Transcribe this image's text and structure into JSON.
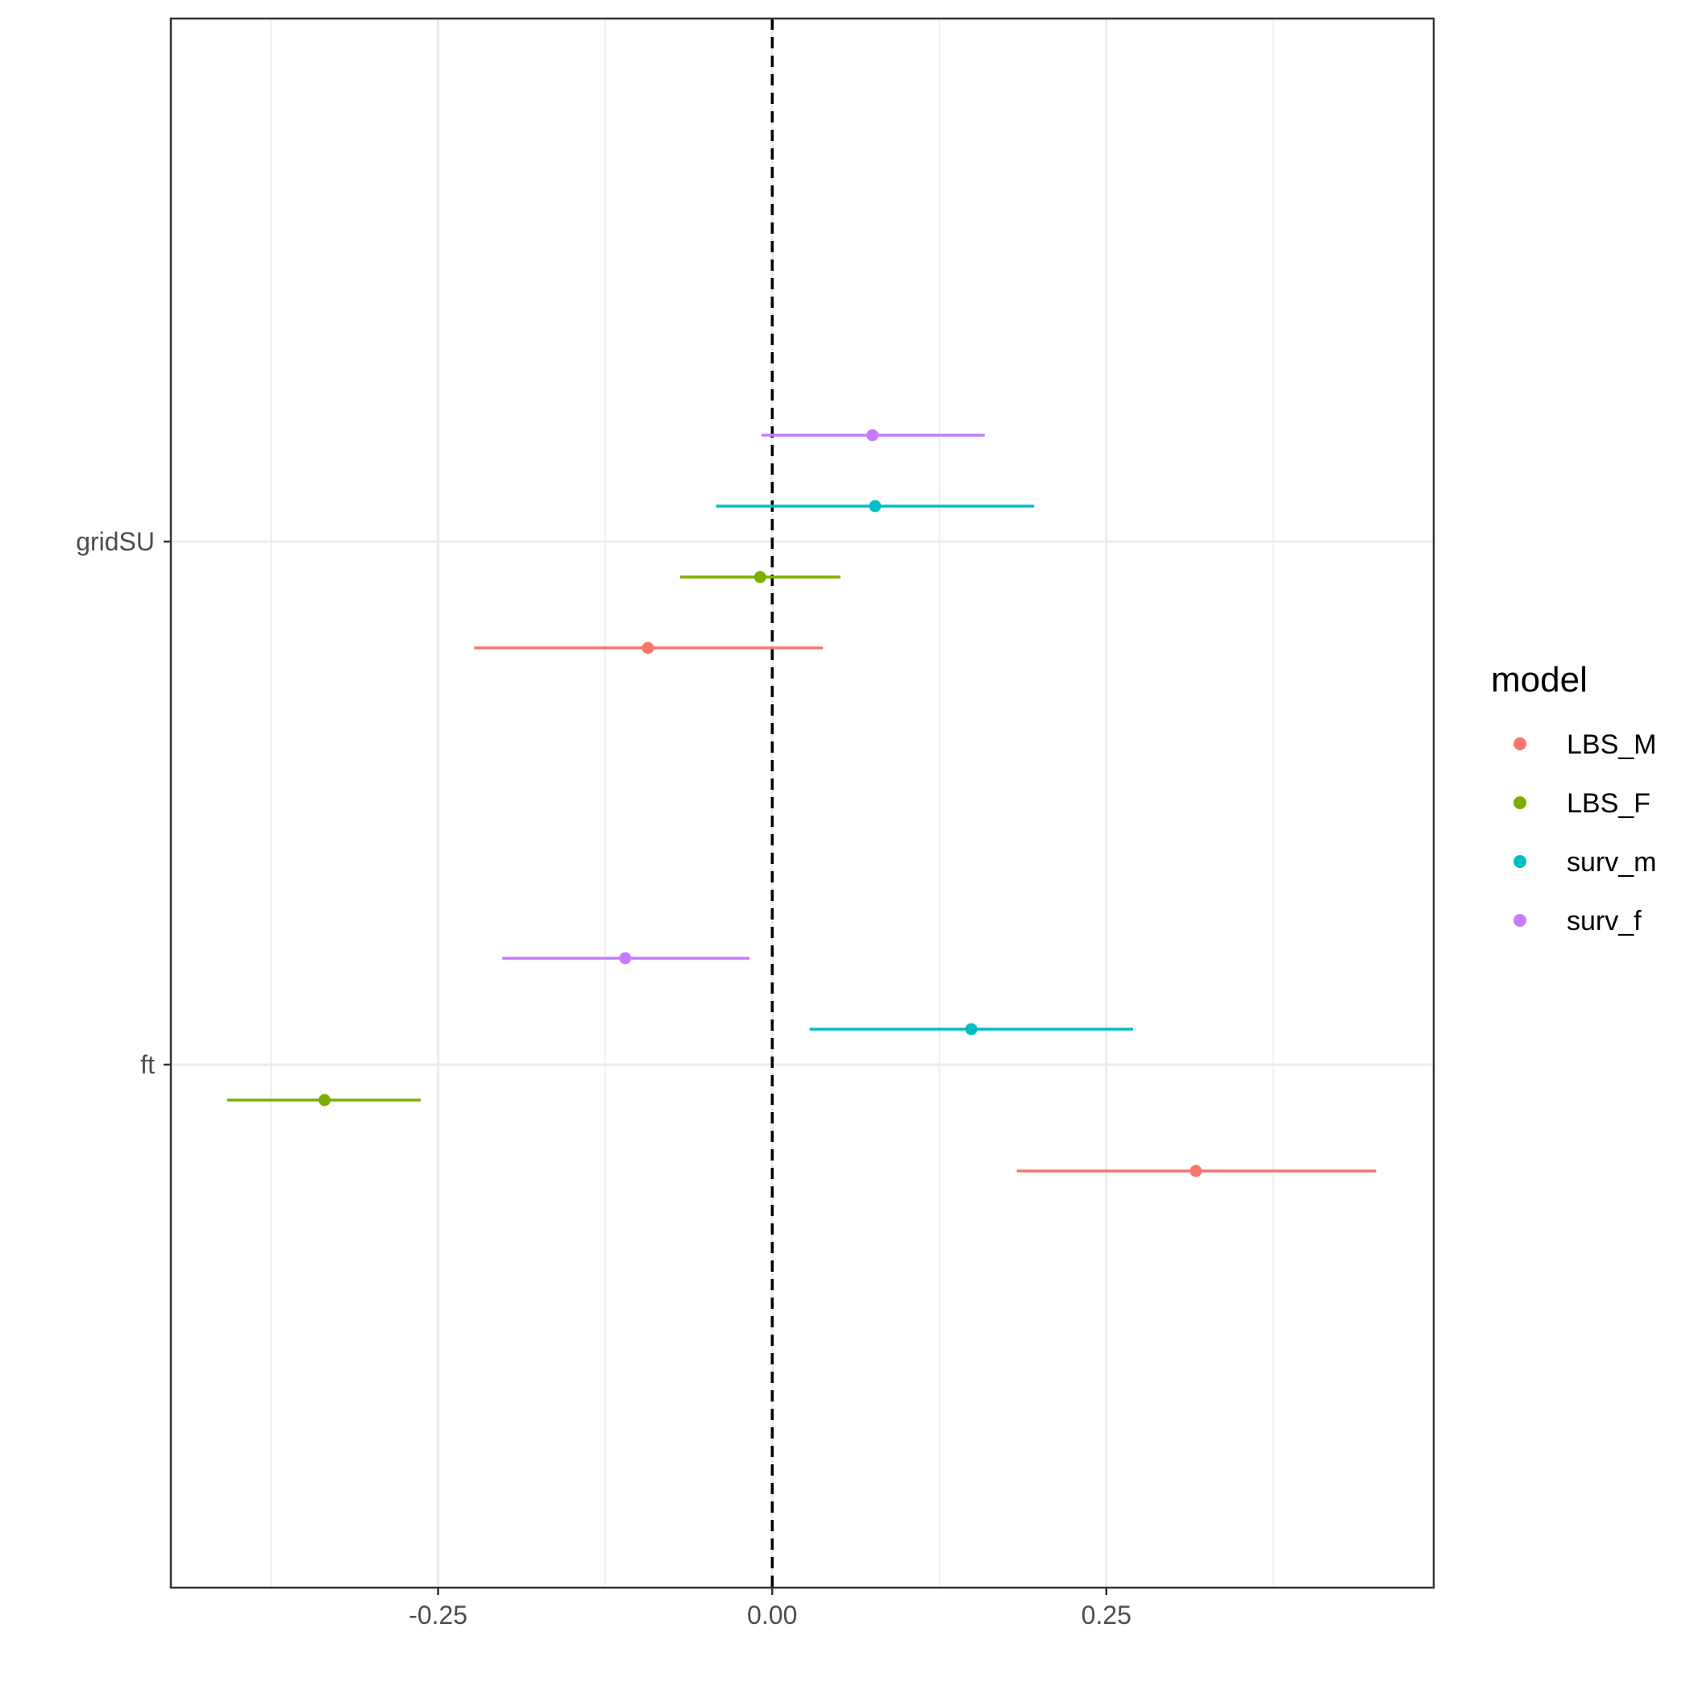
{
  "chart_data": {
    "type": "forest",
    "title": "",
    "xlabel": "",
    "ylabel": "",
    "xlim": [
      -0.45,
      0.495
    ],
    "x_ticks": [
      -0.25,
      0.0,
      0.25
    ],
    "x_tick_labels": [
      "-0.25",
      "0.00",
      "0.25"
    ],
    "categories": [
      "ft",
      "gridSU"
    ],
    "reference_line": {
      "x": 0,
      "style": "dashed",
      "color": "#000000"
    },
    "grid": true,
    "legend": {
      "title": "model",
      "position": "right"
    },
    "series": [
      {
        "name": "LBS_M",
        "color": "#F8766D",
        "points": [
          {
            "term": "ft",
            "estimate": 0.317,
            "low": 0.183,
            "high": 0.452
          },
          {
            "term": "gridSU",
            "estimate": -0.093,
            "low": -0.223,
            "high": 0.038
          }
        ]
      },
      {
        "name": "LBS_F",
        "color": "#7CAE00",
        "points": [
          {
            "term": "ft",
            "estimate": -0.335,
            "low": -0.408,
            "high": -0.263
          },
          {
            "term": "gridSU",
            "estimate": -0.009,
            "low": -0.069,
            "high": 0.051
          }
        ]
      },
      {
        "name": "surv_m",
        "color": "#00BFC4",
        "points": [
          {
            "term": "ft",
            "estimate": 0.149,
            "low": 0.028,
            "high": 0.27
          },
          {
            "term": "gridSU",
            "estimate": 0.077,
            "low": -0.042,
            "high": 0.196
          }
        ]
      },
      {
        "name": "surv_f",
        "color": "#C77CFF",
        "points": [
          {
            "term": "ft",
            "estimate": -0.11,
            "low": -0.202,
            "high": -0.017
          },
          {
            "term": "gridSU",
            "estimate": 0.075,
            "low": -0.008,
            "high": 0.159
          }
        ]
      }
    ]
  }
}
